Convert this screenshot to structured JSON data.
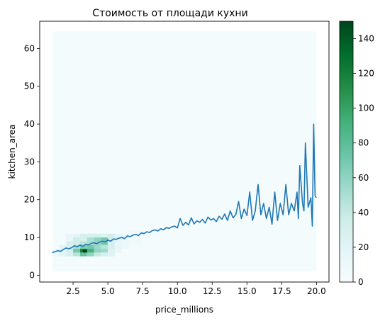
{
  "chart_data": {
    "type": "heatmap",
    "title": "Стоимость от площади кухни",
    "xlabel": "price_millions",
    "ylabel": "kitchen_area",
    "xlim": [
      0.1,
      20.9
    ],
    "ylim": [
      -1.8,
      67.2
    ],
    "x_ticks": [
      "2.5",
      "5.0",
      "7.5",
      "10.0",
      "12.5",
      "15.0",
      "17.5",
      "20.0"
    ],
    "x_tick_values": [
      2.5,
      5.0,
      7.5,
      10.0,
      12.5,
      15.0,
      17.5,
      20.0
    ],
    "y_ticks": [
      "0",
      "10",
      "20",
      "30",
      "40",
      "50",
      "60"
    ],
    "y_tick_values": [
      0,
      10,
      20,
      30,
      40,
      50,
      60
    ],
    "heatmap": {
      "colormap": "BuGn",
      "x_range": [
        1.0,
        20.0
      ],
      "y_range": [
        1.0,
        64.5
      ],
      "background_color": "#f4fbfc",
      "cmin": 0,
      "cmax": 150,
      "cells": [
        {
          "x0": 1.0,
          "x1": 1.5,
          "y0": 5.0,
          "y1": 7.0,
          "count": 12
        },
        {
          "x0": 1.5,
          "x1": 2.0,
          "y0": 5.0,
          "y1": 8.0,
          "count": 20
        },
        {
          "x0": 2.0,
          "x1": 2.5,
          "y0": 5.0,
          "y1": 9.0,
          "count": 30
        },
        {
          "x0": 2.0,
          "x1": 2.5,
          "y0": 9.0,
          "y1": 11.0,
          "count": 14
        },
        {
          "x0": 2.5,
          "x1": 3.0,
          "y0": 5.0,
          "y1": 6.0,
          "count": 45
        },
        {
          "x0": 2.5,
          "x1": 3.0,
          "y0": 6.0,
          "y1": 7.0,
          "count": 70
        },
        {
          "x0": 2.5,
          "x1": 3.0,
          "y0": 7.0,
          "y1": 8.0,
          "count": 50
        },
        {
          "x0": 2.5,
          "x1": 3.0,
          "y0": 8.0,
          "y1": 10.0,
          "count": 35
        },
        {
          "x0": 2.5,
          "x1": 3.0,
          "y0": 10.0,
          "y1": 11.0,
          "count": 20
        },
        {
          "x0": 3.0,
          "x1": 3.5,
          "y0": 5.0,
          "y1": 6.0,
          "count": 75
        },
        {
          "x0": 3.0,
          "x1": 3.5,
          "y0": 6.0,
          "y1": 7.0,
          "count": 120
        },
        {
          "x0": 3.0,
          "x1": 3.5,
          "y0": 7.0,
          "y1": 8.0,
          "count": 65
        },
        {
          "x0": 3.0,
          "x1": 3.5,
          "y0": 8.0,
          "y1": 9.0,
          "count": 45
        },
        {
          "x0": 3.0,
          "x1": 3.5,
          "y0": 9.0,
          "y1": 11.0,
          "count": 30
        },
        {
          "x0": 3.2,
          "x1": 3.6,
          "y0": 6.0,
          "y1": 6.8,
          "count": 150
        },
        {
          "x0": 3.5,
          "x1": 4.0,
          "y0": 5.0,
          "y1": 6.0,
          "count": 60
        },
        {
          "x0": 3.5,
          "x1": 4.0,
          "y0": 6.0,
          "y1": 7.0,
          "count": 90
        },
        {
          "x0": 3.5,
          "x1": 4.0,
          "y0": 7.0,
          "y1": 8.0,
          "count": 70
        },
        {
          "x0": 3.5,
          "x1": 4.0,
          "y0": 8.0,
          "y1": 10.0,
          "count": 50
        },
        {
          "x0": 3.5,
          "x1": 4.0,
          "y0": 10.0,
          "y1": 11.0,
          "count": 30
        },
        {
          "x0": 4.0,
          "x1": 4.5,
          "y0": 5.0,
          "y1": 6.0,
          "count": 40
        },
        {
          "x0": 4.0,
          "x1": 4.5,
          "y0": 6.0,
          "y1": 7.0,
          "count": 60
        },
        {
          "x0": 4.0,
          "x1": 4.5,
          "y0": 7.0,
          "y1": 8.0,
          "count": 55
        },
        {
          "x0": 4.0,
          "x1": 4.5,
          "y0": 8.0,
          "y1": 10.0,
          "count": 60
        },
        {
          "x0": 4.0,
          "x1": 4.5,
          "y0": 10.0,
          "y1": 11.0,
          "count": 30
        },
        {
          "x0": 4.5,
          "x1": 5.0,
          "y0": 5.0,
          "y1": 6.0,
          "count": 30
        },
        {
          "x0": 4.5,
          "x1": 5.0,
          "y0": 6.0,
          "y1": 7.0,
          "count": 55
        },
        {
          "x0": 4.5,
          "x1": 5.0,
          "y0": 7.0,
          "y1": 8.0,
          "count": 45
        },
        {
          "x0": 4.5,
          "x1": 5.0,
          "y0": 8.0,
          "y1": 10.0,
          "count": 70
        },
        {
          "x0": 4.5,
          "x1": 5.0,
          "y0": 10.0,
          "y1": 11.0,
          "count": 25
        },
        {
          "x0": 5.0,
          "x1": 5.5,
          "y0": 5.0,
          "y1": 7.0,
          "count": 25
        },
        {
          "x0": 5.0,
          "x1": 5.5,
          "y0": 7.0,
          "y1": 9.0,
          "count": 30
        },
        {
          "x0": 5.0,
          "x1": 5.5,
          "y0": 9.0,
          "y1": 11.0,
          "count": 35
        },
        {
          "x0": 5.5,
          "x1": 6.0,
          "y0": 6.0,
          "y1": 9.0,
          "count": 15
        },
        {
          "x0": 5.5,
          "x1": 6.0,
          "y0": 9.0,
          "y1": 11.0,
          "count": 20
        },
        {
          "x0": 6.0,
          "x1": 6.5,
          "y0": 7.0,
          "y1": 11.0,
          "count": 12
        },
        {
          "x0": 6.5,
          "x1": 7.5,
          "y0": 8.0,
          "y1": 12.0,
          "count": 8
        }
      ]
    },
    "series": [
      {
        "x": [
          1.0,
          1.2,
          1.4,
          1.6,
          1.8,
          2.0,
          2.2,
          2.4,
          2.6,
          2.8,
          3.0,
          3.2,
          3.4,
          3.6,
          3.8,
          4.0,
          4.2,
          4.4,
          4.6,
          4.8,
          5.0,
          5.2,
          5.4,
          5.6,
          5.8,
          6.0,
          6.2,
          6.4,
          6.6,
          6.8,
          7.0,
          7.2,
          7.4,
          7.6,
          7.8,
          8.0,
          8.2,
          8.4,
          8.6,
          8.8,
          9.0,
          9.2,
          9.4,
          9.6,
          9.8,
          10.0,
          10.2,
          10.4,
          10.6,
          10.8,
          11.0,
          11.2,
          11.4,
          11.6,
          11.8,
          12.0,
          12.2,
          12.4,
          12.6,
          12.8,
          13.0,
          13.2,
          13.4,
          13.6,
          13.8,
          14.0,
          14.2,
          14.4,
          14.6,
          14.8,
          15.0,
          15.2,
          15.4,
          15.6,
          15.8,
          16.0,
          16.2,
          16.4,
          16.6,
          16.8,
          17.0,
          17.2,
          17.4,
          17.6,
          17.8,
          18.0,
          18.2,
          18.4,
          18.6,
          18.7,
          18.8,
          19.0,
          19.1,
          19.2,
          19.4,
          19.6,
          19.7,
          19.8,
          19.9,
          20.0
        ],
        "y": [
          6.0,
          6.2,
          6.5,
          6.3,
          6.8,
          7.2,
          7.0,
          7.3,
          7.8,
          7.5,
          8.0,
          7.6,
          8.2,
          8.0,
          8.4,
          8.6,
          8.3,
          8.8,
          9.0,
          8.8,
          9.3,
          9.0,
          9.6,
          9.5,
          9.8,
          10.0,
          9.7,
          10.4,
          10.2,
          10.6,
          10.8,
          10.5,
          11.2,
          11.0,
          11.5,
          11.3,
          11.8,
          12.0,
          11.7,
          12.3,
          12.0,
          12.6,
          12.4,
          12.8,
          13.0,
          12.5,
          15.0,
          13.2,
          14.0,
          13.3,
          15.2,
          13.6,
          14.4,
          14.0,
          14.8,
          13.8,
          15.4,
          14.6,
          15.0,
          14.2,
          15.6,
          14.8,
          16.2,
          14.5,
          17.0,
          15.2,
          16.0,
          19.5,
          15.0,
          17.5,
          15.8,
          22.0,
          14.5,
          17.0,
          24.0,
          16.0,
          19.0,
          15.0,
          18.0,
          13.5,
          22.0,
          14.5,
          19.0,
          16.0,
          24.0,
          16.0,
          19.0,
          17.0,
          22.0,
          15.0,
          29.0,
          19.0,
          17.0,
          35.0,
          18.0,
          20.5,
          13.0,
          40.0,
          21.0,
          20.5
        ]
      }
    ],
    "colorbar": {
      "ticks": [
        "0",
        "20",
        "40",
        "60",
        "80",
        "100",
        "120",
        "140"
      ],
      "tick_values": [
        0,
        20,
        40,
        60,
        80,
        100,
        120,
        140
      ],
      "range": [
        0,
        150
      ]
    },
    "line_color": "#1f77b4"
  }
}
